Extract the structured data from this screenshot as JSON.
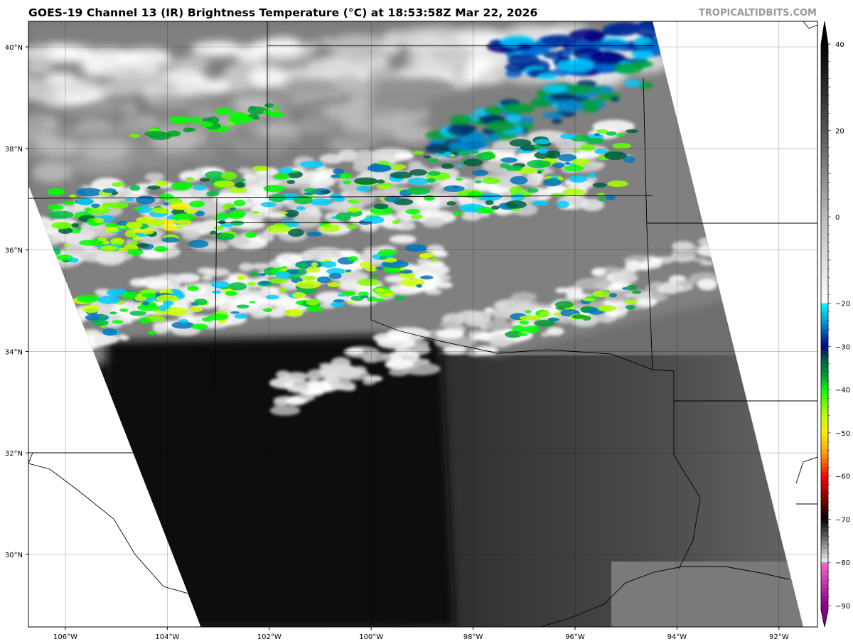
{
  "title": "GOES-19 Channel 13 (IR) Brightness Temperature (°C) at 18:53:58Z Mar 22, 2026",
  "watermark": "TROPICALTIDBITS.COM",
  "map": {
    "longitude_labels": [
      "106°W",
      "104°W",
      "102°W",
      "100°W",
      "98°W",
      "96°W",
      "94°W",
      "92°W"
    ],
    "longitudes": [
      -106,
      -104,
      -102,
      -100,
      -98,
      -96,
      -94,
      -92
    ],
    "latitude_labels": [
      "40°N",
      "38°N",
      "36°N",
      "34°N",
      "32°N",
      "30°N"
    ],
    "latitudes": [
      40,
      38,
      36,
      34,
      32,
      30
    ],
    "grid": true
  },
  "colorbar": {
    "tick_labels": [
      "40",
      "20",
      "0",
      "−20",
      "−30",
      "−40",
      "−50",
      "−60",
      "−70",
      "−80",
      "−90"
    ],
    "ticks": [
      40,
      20,
      0,
      -20,
      -30,
      -40,
      -50,
      -60,
      -70,
      -80,
      -90
    ],
    "range": [
      -90,
      40
    ],
    "extend": "both",
    "stops": [
      {
        "v": 40,
        "c": "#000000"
      },
      {
        "v": 20,
        "c": "#555555"
      },
      {
        "v": 0,
        "c": "#bbbbbb"
      },
      {
        "v": -19.9,
        "c": "#ffffff"
      },
      {
        "v": -20,
        "c": "#00ffff"
      },
      {
        "v": -25,
        "c": "#0088cc"
      },
      {
        "v": -30,
        "c": "#000080"
      },
      {
        "v": -33,
        "c": "#006040"
      },
      {
        "v": -37,
        "c": "#00a030"
      },
      {
        "v": -40,
        "c": "#00ff00"
      },
      {
        "v": -45,
        "c": "#aaff00"
      },
      {
        "v": -50,
        "c": "#ffee00"
      },
      {
        "v": -55,
        "c": "#ff9900"
      },
      {
        "v": -60,
        "c": "#ff0000"
      },
      {
        "v": -65,
        "c": "#880000"
      },
      {
        "v": -70,
        "c": "#000000"
      },
      {
        "v": -75,
        "c": "#777777"
      },
      {
        "v": -79.9,
        "c": "#eeeeee"
      },
      {
        "v": -80,
        "c": "#ff66cc"
      },
      {
        "v": -90,
        "c": "#880088"
      }
    ]
  }
}
